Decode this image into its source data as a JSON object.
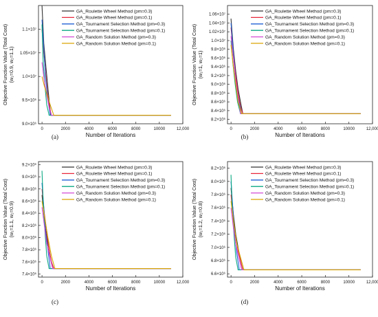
{
  "colors": [
    "#333333",
    "#e8273a",
    "#1f5fd6",
    "#0aa882",
    "#d54bd6",
    "#d9a400"
  ],
  "legend": [
    "GA_Roulette Wheel Method (pm=0.3)",
    "GA_Roulette Wheel Method (pm=0.1)",
    "GA_Tournament Selection Method (pm=0.3)",
    "GA_Tournament Selection Method (pm=0.1)",
    "GA_Random Solution Method (pm=0.3)",
    "GA_Random Solution Method (pm=0.1)"
  ],
  "chart_data": [
    {
      "type": "line",
      "panel": "(a)",
      "xlabel": "Number of Iterations",
      "ylabel": "Objective Function Value (Total Cost)",
      "ylabel_sub": "(w₁=0.9, w₂=1.1)",
      "xlim": [
        -300,
        12000
      ],
      "ylim": [
        9000000,
        11500000
      ],
      "xticks": [
        0,
        2000,
        4000,
        6000,
        8000,
        10000,
        12000
      ],
      "xtick_labels": [
        "0",
        "2000",
        "4000",
        "6000",
        "8000",
        "10000",
        "12,000"
      ],
      "yticks": [
        9000000,
        9500000,
        10000000,
        10500000,
        11000000
      ],
      "ytick_labels": [
        "9.0×10⁶",
        "9.5×10⁶",
        "1.0×10⁷",
        "1.05×10⁷",
        "1.1×10⁷"
      ],
      "series": [
        {
          "name": "GA_Roulette Wheel Method (pm=0.3)",
          "x": [
            0,
            150,
            300,
            450,
            600,
            750,
            11000
          ],
          "y": [
            11600000,
            10700000,
            10300000,
            9900000,
            9500000,
            9180000,
            9180000
          ]
        },
        {
          "name": "GA_Roulette Wheel Method (pm=0.1)",
          "x": [
            0,
            150,
            300,
            450,
            600,
            800,
            11000
          ],
          "y": [
            11000000,
            10500000,
            10100000,
            9700000,
            9400000,
            9180000,
            9180000
          ]
        },
        {
          "name": "GA_Tournament Selection Method (pm=0.3)",
          "x": [
            0,
            150,
            300,
            500,
            700,
            11000
          ],
          "y": [
            11200000,
            10600000,
            10000000,
            9500000,
            9180000,
            9180000
          ]
        },
        {
          "name": "GA_Tournament Selection Method (pm=0.1)",
          "x": [
            0,
            100,
            250,
            400,
            600,
            11000
          ],
          "y": [
            11100000,
            10300000,
            9800000,
            9400000,
            9180000,
            9180000
          ]
        },
        {
          "name": "GA_Random Solution Method (pm=0.3)",
          "x": [
            0,
            200,
            400,
            600,
            800,
            11000
          ],
          "y": [
            10300000,
            9900000,
            9600000,
            9350000,
            9180000,
            9180000
          ]
        },
        {
          "name": "GA_Random Solution Method (pm=0.1)",
          "x": [
            0,
            200,
            450,
            700,
            1000,
            11000
          ],
          "y": [
            10000000,
            9800000,
            9600000,
            9400000,
            9180000,
            9180000
          ]
        }
      ]
    },
    {
      "type": "line",
      "panel": "(b)",
      "xlabel": "Number of Iterations",
      "ylabel": "Objective Function Value (Total Cost)",
      "ylabel_sub": "(w₁=1, w₂=1)",
      "xlim": [
        -300,
        12000
      ],
      "ylim": [
        8100000,
        10800000
      ],
      "xticks": [
        0,
        2000,
        4000,
        6000,
        8000,
        10000,
        12000
      ],
      "xtick_labels": [
        "0",
        "2000",
        "4000",
        "6000",
        "8000",
        "10000",
        "12,000"
      ],
      "yticks": [
        8200000,
        8400000,
        8600000,
        8800000,
        9000000,
        9200000,
        9400000,
        9600000,
        9800000,
        10000000,
        10200000,
        10400000,
        10600000
      ],
      "ytick_labels": [
        "8.2×10⁶",
        "8.4×10⁶",
        "8.6×10⁶",
        "8.8×10⁶",
        "9.0×10⁶",
        "9.2×10⁶",
        "9.4×10⁶",
        "9.6×10⁶",
        "9.8×10⁶",
        "1.0×10⁷",
        "1.02×10⁷",
        "1.04×10⁷",
        "1.06×10⁷"
      ],
      "series": [
        {
          "name": "GA_Roulette Wheel Method (pm=0.3)",
          "x": [
            0,
            200,
            400,
            600,
            800,
            1000,
            11000
          ],
          "y": [
            10500000,
            9800000,
            9300000,
            8900000,
            8600000,
            8330000,
            8330000
          ]
        },
        {
          "name": "GA_Roulette Wheel Method (pm=0.1)",
          "x": [
            0,
            200,
            400,
            600,
            800,
            1000,
            11000
          ],
          "y": [
            10300000,
            9700000,
            9200000,
            8800000,
            8500000,
            8330000,
            8330000
          ]
        },
        {
          "name": "GA_Tournament Selection Method (pm=0.3)",
          "x": [
            0,
            200,
            400,
            600,
            900,
            11000
          ],
          "y": [
            10400000,
            9700000,
            9100000,
            8700000,
            8330000,
            8330000
          ]
        },
        {
          "name": "GA_Tournament Selection Method (pm=0.1)",
          "x": [
            0,
            150,
            350,
            550,
            800,
            11000
          ],
          "y": [
            10000000,
            9500000,
            9000000,
            8600000,
            8330000,
            8330000
          ]
        },
        {
          "name": "GA_Random Solution Method (pm=0.3)",
          "x": [
            0,
            200,
            400,
            600,
            800,
            11000
          ],
          "y": [
            10100000,
            9600000,
            9100000,
            8700000,
            8330000,
            8330000
          ]
        },
        {
          "name": "GA_Random Solution Method (pm=0.1)",
          "x": [
            0,
            200,
            400,
            600,
            900,
            11000
          ],
          "y": [
            9900000,
            9400000,
            9000000,
            8600000,
            8330000,
            8330000
          ]
        }
      ]
    },
    {
      "type": "line",
      "panel": "(c)",
      "xlabel": "Number of Iterations",
      "ylabel": "Objective Function Value (Total Cost)",
      "ylabel_sub": "(w₁=1.1, w₂=0.9)",
      "xlim": [
        -300,
        12000
      ],
      "ylim": [
        7350000,
        9250000
      ],
      "xticks": [
        0,
        2000,
        4000,
        6000,
        8000,
        10000,
        12000
      ],
      "xtick_labels": [
        "0",
        "2000",
        "4000",
        "6000",
        "8000",
        "10000",
        "12,000"
      ],
      "yticks": [
        7400000,
        7600000,
        7800000,
        8000000,
        8200000,
        8400000,
        8600000,
        8800000,
        9000000,
        9200000
      ],
      "ytick_labels": [
        "7.4×10⁶",
        "7.6×10⁶",
        "7.8×10⁶",
        "8.0×10⁶",
        "8.2×10⁶",
        "8.4×10⁶",
        "8.6×10⁶",
        "8.8×10⁶",
        "9.0×10⁶",
        "9.2×10⁶"
      ],
      "series": [
        {
          "name": "GA_Roulette Wheel Method (pm=0.3)",
          "x": [
            0,
            200,
            400,
            600,
            800,
            1000,
            11000
          ],
          "y": [
            8700000,
            8300000,
            8000000,
            7800000,
            7600000,
            7490000,
            7490000
          ]
        },
        {
          "name": "GA_Roulette Wheel Method (pm=0.1)",
          "x": [
            0,
            200,
            400,
            600,
            800,
            1000,
            11000
          ],
          "y": [
            8800000,
            8400000,
            8100000,
            7800000,
            7600000,
            7490000,
            7490000
          ]
        },
        {
          "name": "GA_Tournament Selection Method (pm=0.3)",
          "x": [
            0,
            150,
            300,
            500,
            700,
            11000
          ],
          "y": [
            8900000,
            8500000,
            8100000,
            7800000,
            7490000,
            7490000
          ]
        },
        {
          "name": "GA_Tournament Selection Method (pm=0.1)",
          "x": [
            0,
            100,
            250,
            400,
            600,
            11000
          ],
          "y": [
            9100000,
            8600000,
            8100000,
            7700000,
            7490000,
            7490000
          ]
        },
        {
          "name": "GA_Random Solution Method (pm=0.3)",
          "x": [
            0,
            200,
            400,
            650,
            900,
            11000
          ],
          "y": [
            8500000,
            8200000,
            7900000,
            7700000,
            7490000,
            7490000
          ]
        },
        {
          "name": "GA_Random Solution Method (pm=0.1)",
          "x": [
            0,
            250,
            500,
            800,
            1100,
            11000
          ],
          "y": [
            8600000,
            8300000,
            8000000,
            7700000,
            7490000,
            7490000
          ]
        }
      ]
    },
    {
      "type": "line",
      "panel": "(d)",
      "xlabel": "Number of Iterations",
      "ylabel": "Objective Function Value (Total Cost)",
      "ylabel_sub": "(w₁=1.2, w₂=0.8)",
      "xlim": [
        -300,
        12000
      ],
      "ylim": [
        6550000,
        8300000
      ],
      "xticks": [
        0,
        2000,
        4000,
        6000,
        8000,
        10000,
        12000
      ],
      "xtick_labels": [
        "0",
        "2000",
        "4000",
        "6000",
        "8000",
        "10000",
        "12,000"
      ],
      "yticks": [
        6600000,
        6800000,
        7000000,
        7200000,
        7400000,
        7600000,
        7800000,
        8000000,
        8200000
      ],
      "ytick_labels": [
        "6.6×10⁶",
        "6.8×10⁶",
        "7.0×10⁶",
        "7.2×10⁶",
        "7.4×10⁶",
        "7.6×10⁶",
        "7.8×10⁶",
        "8.0×10⁶",
        "8.2×10⁶"
      ],
      "series": [
        {
          "name": "GA_Roulette Wheel Method (pm=0.3)",
          "x": [
            0,
            200,
            400,
            600,
            800,
            1000,
            11000
          ],
          "y": [
            7900000,
            7500000,
            7200000,
            7000000,
            6800000,
            6660000,
            6660000
          ]
        },
        {
          "name": "GA_Roulette Wheel Method (pm=0.1)",
          "x": [
            0,
            200,
            400,
            600,
            800,
            1000,
            11000
          ],
          "y": [
            7800000,
            7400000,
            7150000,
            6950000,
            6800000,
            6660000,
            6660000
          ]
        },
        {
          "name": "GA_Tournament Selection Method (pm=0.3)",
          "x": [
            0,
            150,
            300,
            500,
            700,
            11000
          ],
          "y": [
            8000000,
            7600000,
            7200000,
            6900000,
            6660000,
            6660000
          ]
        },
        {
          "name": "GA_Tournament Selection Method (pm=0.1)",
          "x": [
            0,
            100,
            250,
            400,
            600,
            11000
          ],
          "y": [
            8100000,
            7600000,
            7200000,
            6850000,
            6660000,
            6660000
          ]
        },
        {
          "name": "GA_Random Solution Method (pm=0.3)",
          "x": [
            0,
            200,
            400,
            650,
            900,
            11000
          ],
          "y": [
            7600000,
            7300000,
            7050000,
            6850000,
            6660000,
            6660000
          ]
        },
        {
          "name": "GA_Random Solution Method (pm=0.1)",
          "x": [
            0,
            250,
            500,
            800,
            1100,
            11000
          ],
          "y": [
            7700000,
            7350000,
            7050000,
            6850000,
            6660000,
            6660000
          ]
        }
      ]
    }
  ]
}
